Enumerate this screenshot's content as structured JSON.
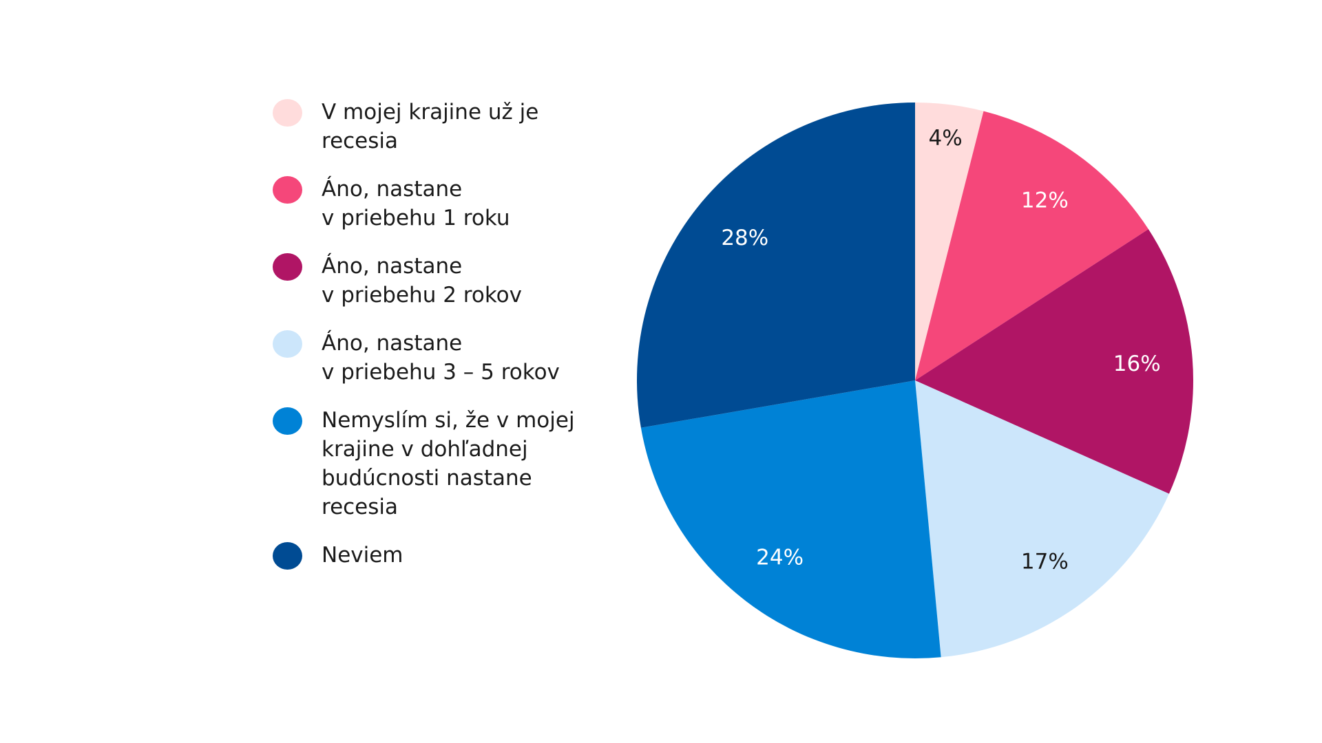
{
  "chart_data": {
    "type": "pie",
    "start_angle": "12 o'clock, clockwise",
    "slices": [
      {
        "label": "V mojej krajine už je\nrecesia",
        "value": 4,
        "value_label": "4%",
        "color": "#ffdcdc",
        "label_color": "#1a1a1a"
      },
      {
        "label": "Áno, nastane\nv priebehu 1 roku",
        "value": 12,
        "value_label": "12%",
        "color": "#f5477a",
        "label_color": "#ffffff"
      },
      {
        "label": "Áno, nastane\nv priebehu 2 rokov",
        "value": 16,
        "value_label": "16%",
        "color": "#b01565",
        "label_color": "#ffffff"
      },
      {
        "label": "Áno, nastane\nv priebehu 3 – 5 rokov",
        "value": 17,
        "value_label": "17%",
        "color": "#cce6fb",
        "label_color": "#1a1a1a"
      },
      {
        "label": "Nemyslím si, že v mojej\nkrajine v dohľadnej\nbudúcnosti nastane\nrecesia",
        "value": 24,
        "value_label": "24%",
        "color": "#0082d6",
        "label_color": "#ffffff"
      },
      {
        "label": "Neviem",
        "value": 28,
        "value_label": "28%",
        "color": "#004b93",
        "label_color": "#ffffff"
      }
    ],
    "legend_placement": "left"
  }
}
